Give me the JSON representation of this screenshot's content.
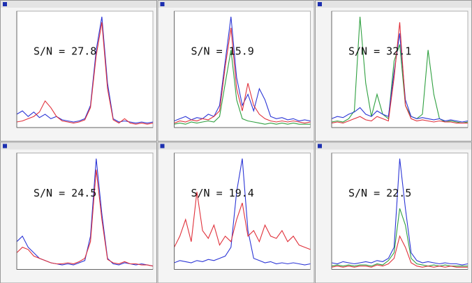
{
  "chart_data": [
    {
      "type": "line",
      "annotation": "S/N = 27.8",
      "ylim": [
        0,
        105
      ],
      "series": [
        {
          "color": "#2b35d6",
          "values": [
            12,
            15,
            10,
            14,
            9,
            12,
            8,
            10,
            7,
            6,
            5,
            6,
            8,
            20,
            70,
            100,
            40,
            8,
            5,
            6,
            5,
            4,
            5,
            4,
            5
          ]
        },
        {
          "color": "#e0303a",
          "values": [
            5,
            6,
            8,
            10,
            14,
            24,
            18,
            10,
            6,
            5,
            4,
            5,
            7,
            18,
            65,
            95,
            35,
            7,
            4,
            8,
            4,
            3,
            4,
            3,
            4
          ]
        }
      ]
    },
    {
      "type": "line",
      "annotation": "S/N = 15.9",
      "ylim": [
        0,
        105
      ],
      "series": [
        {
          "color": "#2b35d6",
          "values": [
            6,
            8,
            10,
            7,
            9,
            8,
            12,
            10,
            20,
            60,
            100,
            45,
            20,
            30,
            15,
            35,
            25,
            10,
            8,
            9,
            7,
            8,
            6,
            7,
            6
          ]
        },
        {
          "color": "#e0303a",
          "values": [
            4,
            6,
            5,
            7,
            6,
            8,
            7,
            10,
            15,
            55,
            90,
            35,
            15,
            40,
            20,
            12,
            8,
            6,
            5,
            6,
            5,
            6,
            5,
            4,
            5
          ]
        },
        {
          "color": "#2fa040",
          "values": [
            3,
            4,
            3,
            5,
            4,
            5,
            6,
            5,
            10,
            40,
            70,
            25,
            8,
            6,
            5,
            4,
            3,
            4,
            3,
            4,
            3,
            4,
            3,
            3,
            3
          ]
        }
      ]
    },
    {
      "type": "line",
      "annotation": "S/N = 32.1",
      "ylim": [
        0,
        105
      ],
      "series": [
        {
          "color": "#2fa040",
          "values": [
            5,
            6,
            5,
            8,
            15,
            100,
            40,
            10,
            30,
            12,
            8,
            60,
            75,
            20,
            10,
            8,
            12,
            70,
            30,
            8,
            5,
            6,
            5,
            4,
            5
          ]
        },
        {
          "color": "#2b35d6",
          "values": [
            8,
            10,
            9,
            12,
            14,
            18,
            12,
            10,
            15,
            12,
            10,
            50,
            85,
            25,
            10,
            8,
            9,
            8,
            7,
            8,
            6,
            7,
            6,
            5,
            6
          ]
        },
        {
          "color": "#e0303a",
          "values": [
            4,
            5,
            4,
            6,
            8,
            10,
            7,
            6,
            10,
            8,
            6,
            45,
            95,
            20,
            8,
            6,
            7,
            6,
            5,
            6,
            5,
            5,
            4,
            4,
            4
          ]
        }
      ]
    },
    {
      "type": "line",
      "annotation": "S/N = 24.5",
      "ylim": [
        0,
        105
      ],
      "series": [
        {
          "color": "#2b35d6",
          "values": [
            25,
            30,
            20,
            15,
            10,
            8,
            6,
            5,
            4,
            5,
            4,
            6,
            8,
            30,
            100,
            50,
            10,
            5,
            4,
            6,
            5,
            4,
            5,
            4,
            3
          ]
        },
        {
          "color": "#e0303a",
          "values": [
            15,
            20,
            18,
            12,
            10,
            8,
            6,
            5,
            5,
            6,
            5,
            7,
            10,
            25,
            90,
            45,
            9,
            6,
            5,
            7,
            5,
            5,
            4,
            4,
            3
          ]
        }
      ]
    },
    {
      "type": "line",
      "annotation": "S/N = 19.4",
      "ylim": [
        0,
        105
      ],
      "series": [
        {
          "color": "#2b35d6",
          "values": [
            6,
            8,
            7,
            6,
            8,
            7,
            9,
            8,
            10,
            12,
            20,
            70,
            100,
            35,
            10,
            8,
            6,
            7,
            5,
            6,
            5,
            6,
            5,
            4,
            5
          ]
        },
        {
          "color": "#e0303a",
          "values": [
            20,
            30,
            45,
            25,
            70,
            35,
            28,
            40,
            22,
            30,
            25,
            45,
            60,
            30,
            35,
            25,
            40,
            30,
            28,
            35,
            25,
            30,
            22,
            20,
            18
          ]
        }
      ]
    },
    {
      "type": "line",
      "annotation": "S/N = 22.5",
      "ylim": [
        0,
        105
      ],
      "series": [
        {
          "color": "#2b35d6",
          "values": [
            6,
            5,
            7,
            6,
            5,
            6,
            7,
            6,
            8,
            7,
            10,
            20,
            100,
            55,
            15,
            8,
            6,
            7,
            6,
            5,
            6,
            5,
            5,
            4,
            5
          ]
        },
        {
          "color": "#2fa040",
          "values": [
            3,
            4,
            3,
            4,
            3,
            4,
            4,
            3,
            5,
            4,
            8,
            15,
            55,
            40,
            10,
            5,
            4,
            3,
            4,
            3,
            4,
            3,
            3,
            3,
            3
          ]
        },
        {
          "color": "#e0303a",
          "values": [
            2,
            3,
            2,
            3,
            2,
            3,
            3,
            2,
            4,
            3,
            5,
            10,
            30,
            20,
            6,
            3,
            2,
            3,
            2,
            3,
            2,
            3,
            2,
            2,
            2
          ]
        }
      ]
    }
  ]
}
